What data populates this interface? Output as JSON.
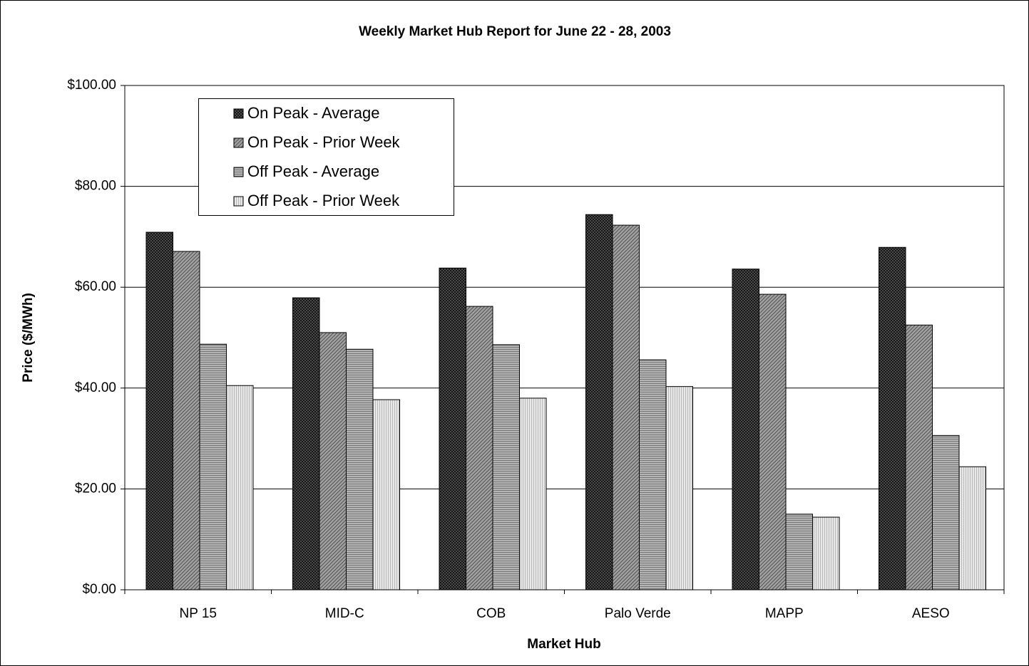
{
  "chart_data": {
    "type": "bar",
    "title": "Weekly Market Hub Report for June 22 - 28,  2003",
    "x_label": "Market Hub",
    "y_label": "Price ($/MWh)",
    "categories": [
      "NP 15",
      "MID-C",
      "COB",
      "Palo Verde",
      "MAPP",
      "AESO"
    ],
    "series": [
      {
        "name": "On Peak - Average",
        "color": "#555555",
        "values": [
          70.9,
          57.9,
          63.8,
          74.4,
          63.6,
          67.9
        ]
      },
      {
        "name": "On Peak - Prior Week",
        "color": "#a0a0a0",
        "values": [
          67.1,
          51.0,
          56.2,
          72.3,
          58.6,
          52.5
        ]
      },
      {
        "name": "Off Peak - Average",
        "color": "#b4b4b4",
        "values": [
          48.7,
          47.7,
          48.6,
          45.6,
          15.0,
          30.6
        ]
      },
      {
        "name": "Off Peak - Prior Week",
        "color": "#e8e8e8",
        "values": [
          40.5,
          37.7,
          38.0,
          40.3,
          14.4,
          24.4
        ]
      }
    ],
    "ylim": [
      0,
      100
    ],
    "yticks": [
      {
        "value": 0,
        "label": "$0.00"
      },
      {
        "value": 20,
        "label": "$20.00"
      },
      {
        "value": 40,
        "label": "$40.00"
      },
      {
        "value": 60,
        "label": "$60.00"
      },
      {
        "value": 80,
        "label": "$80.00"
      },
      {
        "value": 100,
        "label": "$100.00"
      }
    ],
    "grid": true
  }
}
